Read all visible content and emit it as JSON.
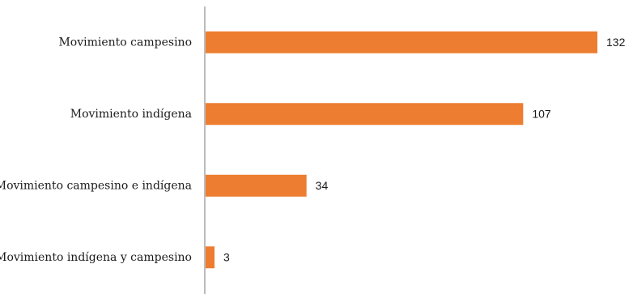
{
  "chart_data": {
    "type": "bar",
    "orientation": "horizontal",
    "categories": [
      "Movimiento campesino",
      "Movimiento indígena",
      "Movimiento campesino e indígena",
      "Movimiento indígena y campesino"
    ],
    "values": [
      132,
      107,
      34,
      3
    ],
    "xlim": [
      0,
      132
    ],
    "grid": false,
    "legend": "none",
    "data_labels": true,
    "colors": {
      "bar": "#ED7D31",
      "axis": "#a6a6a6",
      "text": "#1a1a1a"
    }
  }
}
